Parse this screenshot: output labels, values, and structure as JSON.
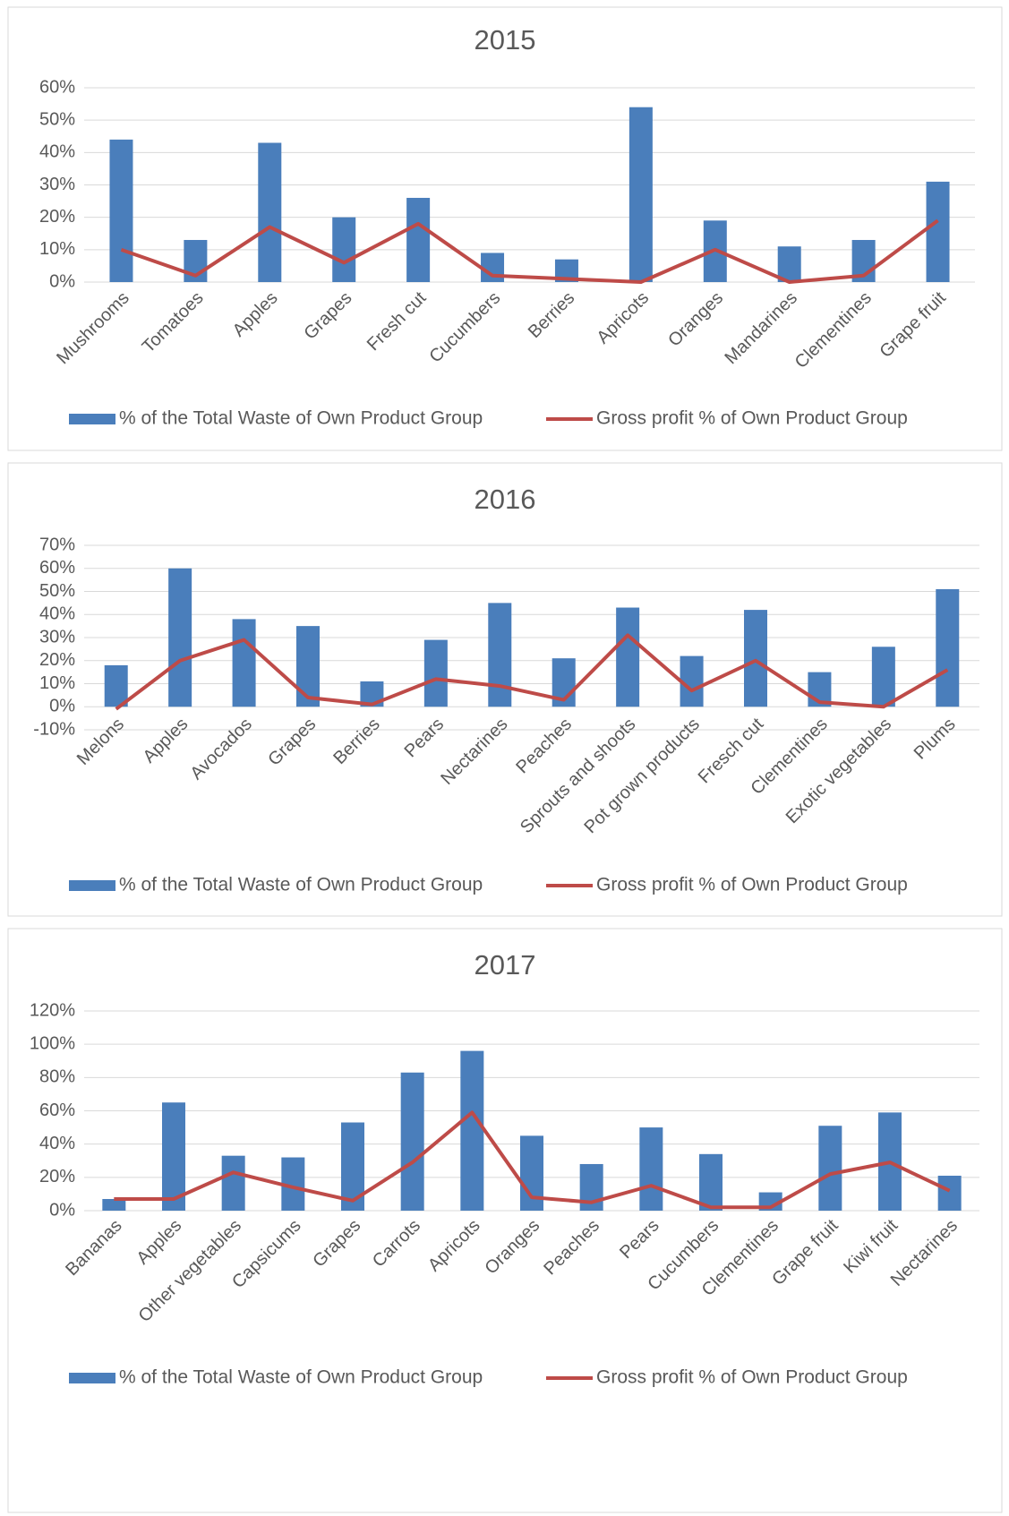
{
  "chart_data": [
    {
      "type": "combo",
      "title": "2015",
      "categories": [
        "Mushrooms",
        "Tomatoes",
        "Apples",
        "Grapes",
        "Fresh cut",
        "Cucumbers",
        "Berries",
        "Apricots",
        "Oranges",
        "Mandarines",
        "Clementines",
        "Grape fruit"
      ],
      "series": [
        {
          "name": "% of the Total Waste of Own Product Group",
          "color": "#4a7ebb",
          "kind": "bar",
          "values": [
            44,
            13,
            43,
            20,
            26,
            9,
            7,
            54,
            19,
            11,
            13,
            31
          ]
        },
        {
          "name": "Gross profit % of Own Product Group",
          "color": "#be4b48",
          "kind": "line",
          "values": [
            10,
            2,
            17,
            6,
            18,
            2,
            1,
            0,
            10,
            0,
            2,
            19
          ]
        }
      ],
      "ylim": [
        0,
        60
      ],
      "yticks": [
        {
          "value": 0,
          "label": "0%"
        },
        {
          "value": 10,
          "label": "10%"
        },
        {
          "value": 20,
          "label": "20%"
        },
        {
          "value": 30,
          "label": "30%"
        },
        {
          "value": 40,
          "label": "40%"
        },
        {
          "value": 50,
          "label": "50%"
        },
        {
          "value": 60,
          "label": "60%"
        }
      ],
      "grid": true,
      "legend": "bottom"
    },
    {
      "type": "combo",
      "title": "2016",
      "categories": [
        "Melons",
        "Apples",
        "Avocados",
        "Grapes",
        "Berries",
        "Pears",
        "Nectarines",
        "Peaches",
        "Sprouts and shoots",
        "Pot grown products",
        "Fresch cut",
        "Clementines",
        "Exotic vegetables",
        "Plums"
      ],
      "series": [
        {
          "name": "% of the Total Waste of Own Product Group",
          "color": "#4a7ebb",
          "kind": "bar",
          "values": [
            18,
            60,
            38,
            35,
            11,
            29,
            45,
            21,
            43,
            22,
            42,
            15,
            26,
            51
          ]
        },
        {
          "name": "Gross profit % of Own Product Group",
          "color": "#be4b48",
          "kind": "line",
          "values": [
            -1,
            20,
            29,
            4,
            1,
            12,
            9,
            3,
            31,
            7,
            20,
            2,
            0,
            16
          ]
        }
      ],
      "ylim": [
        -10,
        70
      ],
      "yticks": [
        {
          "value": -10,
          "label": "-10%"
        },
        {
          "value": 0,
          "label": "0%"
        },
        {
          "value": 10,
          "label": "10%"
        },
        {
          "value": 20,
          "label": "20%"
        },
        {
          "value": 30,
          "label": "30%"
        },
        {
          "value": 40,
          "label": "40%"
        },
        {
          "value": 50,
          "label": "50%"
        },
        {
          "value": 60,
          "label": "60%"
        },
        {
          "value": 70,
          "label": "70%"
        }
      ],
      "grid": true,
      "legend": "bottom"
    },
    {
      "type": "combo",
      "title": "2017",
      "categories": [
        "Bananas",
        "Apples",
        "Other vegetables",
        "Capsicums",
        "Grapes",
        "Carrots",
        "Apricots",
        "Oranges",
        "Peaches",
        "Pears",
        "Cucumbers",
        "Clementines",
        "Grape fruit",
        "Kiwi fruit",
        "Nectarines"
      ],
      "series": [
        {
          "name": "% of the Total Waste of Own Product Group",
          "color": "#4a7ebb",
          "kind": "bar",
          "values": [
            7,
            65,
            33,
            32,
            53,
            83,
            96,
            45,
            28,
            50,
            34,
            11,
            51,
            59,
            21
          ]
        },
        {
          "name": "Gross profit % of Own Product Group",
          "color": "#be4b48",
          "kind": "line",
          "values": [
            7,
            7,
            23,
            14,
            6,
            29,
            59,
            8,
            5,
            15,
            2,
            2,
            22,
            29,
            12
          ]
        }
      ],
      "ylim": [
        0,
        120
      ],
      "yticks": [
        {
          "value": 0,
          "label": "0%"
        },
        {
          "value": 20,
          "label": "20%"
        },
        {
          "value": 40,
          "label": "40%"
        },
        {
          "value": 60,
          "label": "60%"
        },
        {
          "value": 80,
          "label": "80%"
        },
        {
          "value": 100,
          "label": "100%"
        },
        {
          "value": 120,
          "label": "120%"
        }
      ],
      "grid": true,
      "legend": "bottom"
    }
  ]
}
